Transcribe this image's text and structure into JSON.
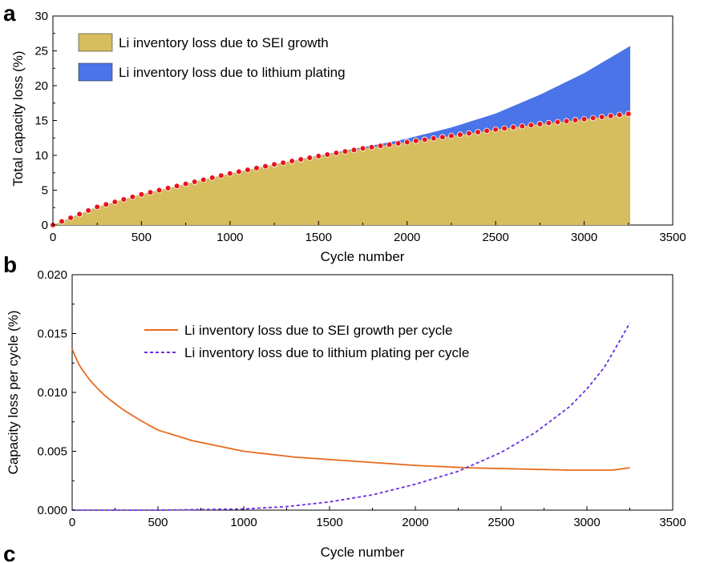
{
  "panel_labels": {
    "a": "a",
    "b": "b",
    "c": "c"
  },
  "chart_data": [
    {
      "panel": "a",
      "type": "area",
      "xlabel": "Cycle number",
      "ylabel": "Total capacity loss (%)",
      "xlim": [
        0,
        3500
      ],
      "ylim": [
        0,
        30
      ],
      "xticks": [
        "0",
        "500",
        "1000",
        "1500",
        "2000",
        "2500",
        "3000",
        "3500"
      ],
      "yticks": [
        "0",
        "5",
        "10",
        "15",
        "20",
        "25",
        "30"
      ],
      "legend_position": "top-left",
      "x": [
        0,
        250,
        500,
        750,
        1000,
        1250,
        1500,
        1750,
        2000,
        2250,
        2500,
        2750,
        3000,
        3260
      ],
      "series": [
        {
          "name": "Li inventory loss due to SEI growth",
          "color": "#d6bd5e",
          "values": [
            0,
            2.6,
            4.4,
            5.9,
            7.4,
            8.7,
            9.9,
            11.0,
            11.9,
            12.8,
            13.7,
            14.5,
            15.2,
            16.0
          ]
        },
        {
          "name": "Li inventory loss due to lithium plating",
          "color": "#4a74e8",
          "stacked_total": [
            0,
            2.6,
            4.4,
            5.9,
            7.4,
            8.7,
            9.95,
            11.15,
            12.4,
            14.0,
            16.0,
            18.7,
            21.8,
            25.7
          ]
        }
      ],
      "markers": {
        "style": "red dots with white outline",
        "color": "#e8141c",
        "spacing_cycles": 50,
        "x_end": 3250
      }
    },
    {
      "panel": "b",
      "type": "line",
      "xlabel": "Cycle number",
      "ylabel": "Capacity loss per cycle (%)",
      "xlim": [
        0,
        3500
      ],
      "ylim": [
        0,
        0.02
      ],
      "xticks": [
        "0",
        "500",
        "1000",
        "1500",
        "2000",
        "2500",
        "3000",
        "3500"
      ],
      "yticks": [
        "0.000",
        "0.005",
        "0.010",
        "0.015",
        "0.020"
      ],
      "legend_position": "top-center",
      "series": [
        {
          "name": "Li inventory loss due to SEI growth per cycle",
          "color": "#e86a1e",
          "style": "solid",
          "x": [
            0,
            25,
            50,
            100,
            150,
            200,
            300,
            400,
            500,
            700,
            1000,
            1300,
            1600,
            2000,
            2300,
            2600,
            2900,
            3050,
            3150,
            3250
          ],
          "values": [
            0.0137,
            0.0128,
            0.0121,
            0.0111,
            0.0103,
            0.0096,
            0.0085,
            0.0076,
            0.0068,
            0.0059,
            0.005,
            0.0045,
            0.0042,
            0.0038,
            0.0036,
            0.0035,
            0.0034,
            0.0034,
            0.0034,
            0.0036
          ]
        },
        {
          "name": "Li inventory loss due to lithium plating per cycle",
          "color": "#6a2fe0",
          "style": "dashed",
          "x": [
            0,
            500,
            1000,
            1250,
            1500,
            1750,
            2000,
            2250,
            2500,
            2700,
            2900,
            3000,
            3100,
            3200,
            3250
          ],
          "values": [
            0,
            0,
            0.0001,
            0.0003,
            0.0007,
            0.0013,
            0.0022,
            0.0033,
            0.0049,
            0.0066,
            0.0088,
            0.0103,
            0.0121,
            0.0146,
            0.0159
          ]
        }
      ]
    }
  ]
}
